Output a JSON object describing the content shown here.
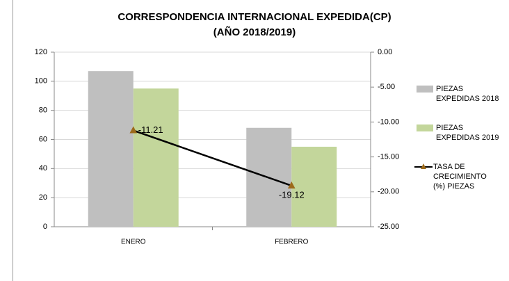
{
  "chart_data": {
    "type": "bar",
    "title": [
      "CORRESPONDENCIA INTERNACIONAL EXPEDIDA(CP)",
      "(AÑO 2018/2019)"
    ],
    "categories": [
      "ENERO",
      "FEBRERO"
    ],
    "series": [
      {
        "name": "PIEZAS EXPEDIDAS 2018",
        "color": "#bfbfbf",
        "values": [
          107,
          68
        ]
      },
      {
        "name": "PIEZAS EXPEDIDAS 2019",
        "color": "#c3d69b",
        "values": [
          95,
          55
        ]
      },
      {
        "name": "TASA DE CRECIMIENTO  (%) PIEZAS",
        "color": "#000000",
        "marker_color": "#9c6a1a",
        "type": "line",
        "axis": "y2",
        "values": [
          -11.21,
          -19.12
        ]
      }
    ],
    "ylim": [
      0,
      120
    ],
    "yticks": [
      0,
      20,
      40,
      60,
      80,
      100,
      120
    ],
    "y2lim": [
      -25,
      0
    ],
    "y2ticks": [
      {
        "value": 0,
        "label": "0.00"
      },
      {
        "value": -5,
        "label": "-5.00"
      },
      {
        "value": -10,
        "label": "-10.00"
      },
      {
        "value": -15,
        "label": "-15.00"
      },
      {
        "value": -20,
        "label": "-20.00"
      },
      {
        "value": -25,
        "label": "-25.00"
      }
    ],
    "grid": true,
    "legend": "right"
  }
}
